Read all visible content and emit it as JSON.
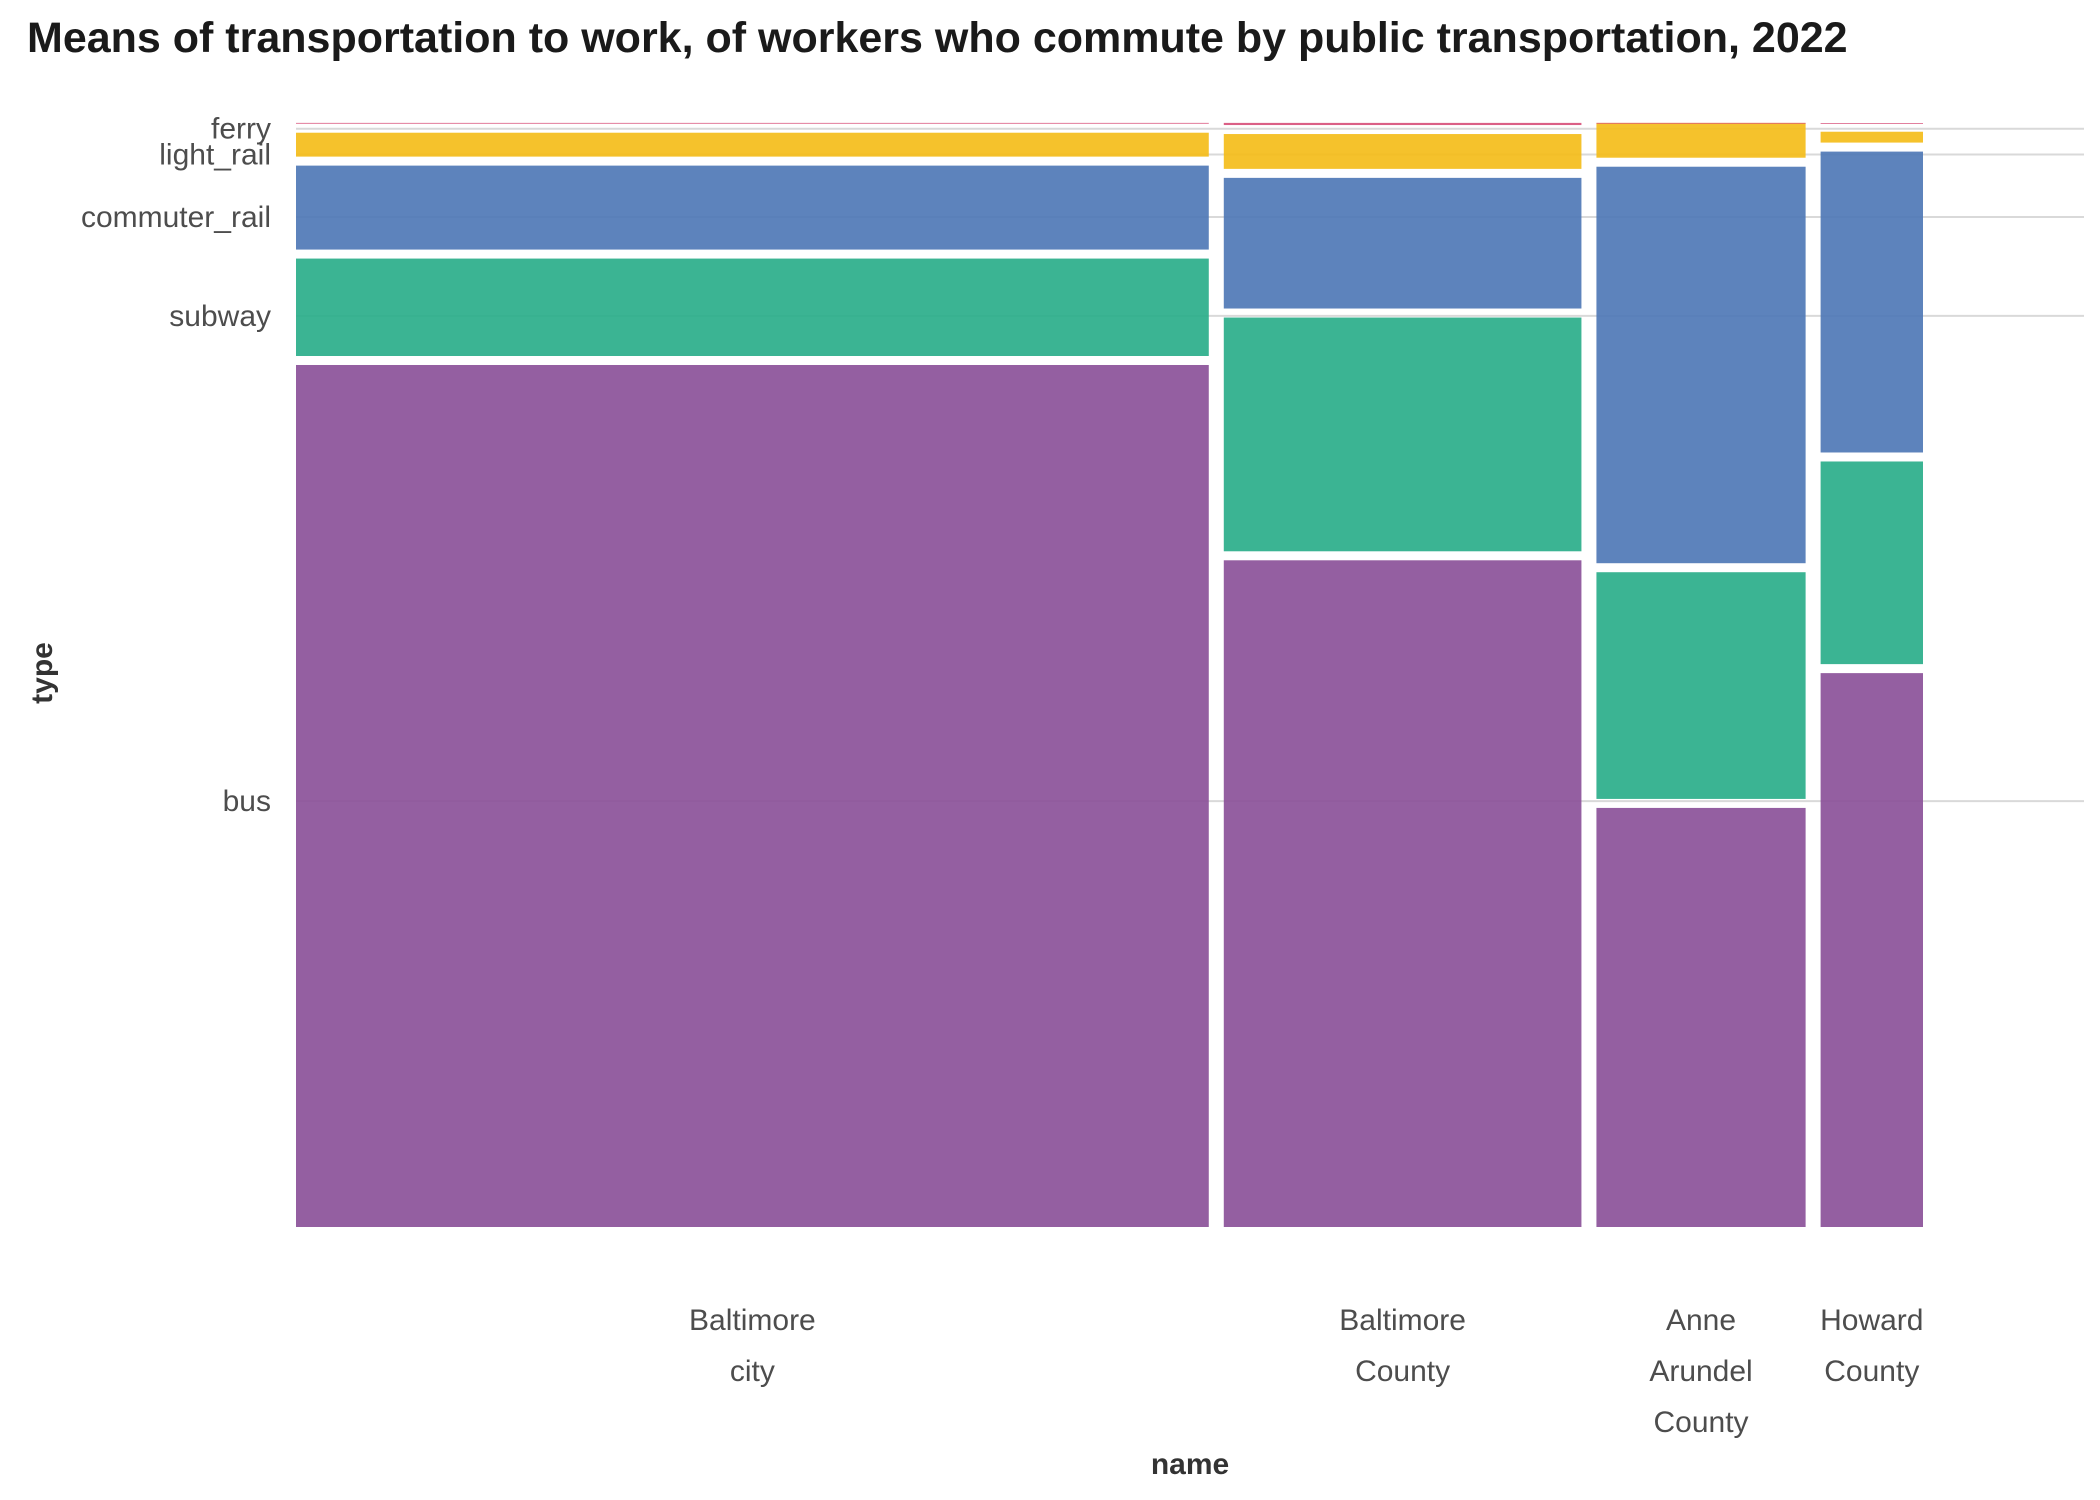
{
  "chart_data": {
    "type": "mosaic",
    "title": "Means of transportation to work, of workers who commute by public transportation, 2022",
    "xlabel": "name",
    "ylabel": "type",
    "categories": [
      {
        "label": [
          "Baltimore",
          "city"
        ],
        "share": 0.5625
      },
      {
        "label": [
          "Baltimore",
          "County"
        ],
        "share": 0.2204
      },
      {
        "label": [
          "Anne",
          "Arundel",
          "County"
        ],
        "share": 0.1289
      },
      {
        "label": [
          "Howard",
          "County"
        ],
        "share": 0.0631
      }
    ],
    "types": [
      "bus",
      "subway",
      "commuter_rail",
      "light_rail",
      "ferry"
    ],
    "ylim": [
      0,
      1
    ],
    "y_tick_positions": [
      0.3858,
      0.8253,
      0.9148,
      0.9715,
      0.9948
    ],
    "series": [
      {
        "name": "bus",
        "color": "#8b5199",
        "values": [
          0.7808,
          0.6039,
          0.3796,
          0.5017
        ]
      },
      {
        "name": "subway",
        "color": "#2aae8a",
        "values": [
          0.0964,
          0.2199,
          0.2135,
          0.1917
        ]
      },
      {
        "name": "commuter_rail",
        "color": "#4f78b6",
        "values": [
          0.0842,
          0.1265,
          0.3673,
          0.2807
        ]
      },
      {
        "name": "light_rail",
        "color": "#f4bd1a",
        "values": [
          0.0298,
          0.0397,
          0.0397,
          0.018
        ]
      },
      {
        "name": "ferry",
        "color": "#d8527c",
        "values": [
          0.0089,
          0.0101,
          0.0,
          0.0079
        ]
      }
    ]
  }
}
